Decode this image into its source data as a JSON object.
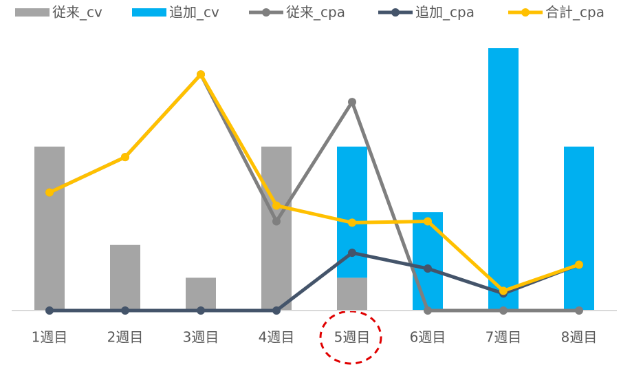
{
  "chart_data": {
    "type": "bar",
    "stacked": true,
    "categories": [
      "1週目",
      "2週目",
      "3週目",
      "4週目",
      "5週目",
      "6週目",
      "7週目",
      "8週目"
    ],
    "series": [
      {
        "name": "従来_cv",
        "type": "bar",
        "color": "#a5a5a5",
        "values": [
          5,
          2,
          1,
          5,
          1,
          0,
          0,
          0
        ]
      },
      {
        "name": "追加_cv",
        "type": "bar",
        "color": "#00b0f0",
        "values": [
          0,
          0,
          0,
          0,
          4,
          3,
          8,
          5
        ]
      },
      {
        "name": "従来_cpa",
        "type": "line",
        "axis": "y2",
        "color": "#7f7f7f",
        "values": [
          9000,
          11700,
          18000,
          6800,
          15900,
          0,
          0,
          0
        ]
      },
      {
        "name": "追加_cpa",
        "type": "line",
        "axis": "y2",
        "color": "#44546a",
        "values": [
          0,
          0,
          0,
          0,
          4400,
          3200,
          1300,
          3500
        ]
      },
      {
        "name": "合計_cpa",
        "type": "line",
        "axis": "y2",
        "color": "#ffc000",
        "values": [
          9000,
          11700,
          18000,
          8000,
          6700,
          6800,
          1500,
          3500
        ]
      }
    ],
    "ylim": [
      0,
      8
    ],
    "y2lim": [
      0,
      20000
    ],
    "legend": "top"
  }
}
